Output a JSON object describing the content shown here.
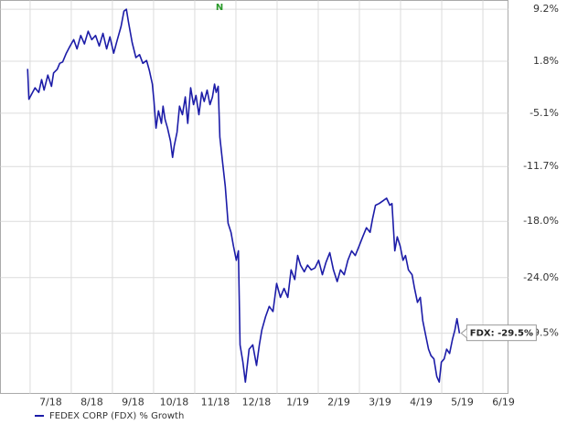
{
  "chart_data": {
    "type": "line",
    "yscale": "log-growth",
    "grid": true,
    "annotation": "N",
    "end_label": "FDX: -29.5%",
    "xlim": [
      -0.72,
      11.61
    ],
    "xticks": [
      {
        "value": 0,
        "label": "7/18"
      },
      {
        "value": 1,
        "label": "8/18"
      },
      {
        "value": 2,
        "label": "9/18"
      },
      {
        "value": 3,
        "label": "10/18"
      },
      {
        "value": 4,
        "label": "11/18"
      },
      {
        "value": 5,
        "label": "12/18"
      },
      {
        "value": 6,
        "label": "1/19"
      },
      {
        "value": 7,
        "label": "2/19"
      },
      {
        "value": 8,
        "label": "3/19"
      },
      {
        "value": 9,
        "label": "4/19"
      },
      {
        "value": 10,
        "label": "5/19"
      },
      {
        "value": 11,
        "label": "6/19"
      }
    ],
    "ylim": [
      -35,
      10.5
    ],
    "yticks": [
      {
        "value": 9.2,
        "label": "9.2%"
      },
      {
        "value": 1.8,
        "label": "1.8%"
      },
      {
        "value": -5.1,
        "label": "-5.1%"
      },
      {
        "value": -11.7,
        "label": "-11.7%"
      },
      {
        "value": -18.0,
        "label": "-18.0%"
      },
      {
        "value": -24.0,
        "label": "-24.0%"
      },
      {
        "value": -29.5,
        "label": "-29.5%"
      }
    ],
    "x": [
      -0.06,
      -0.03,
      0.06,
      0.12,
      0.21,
      0.28,
      0.34,
      0.43,
      0.52,
      0.57,
      0.66,
      0.72,
      0.79,
      0.88,
      0.97,
      1.06,
      1.14,
      1.23,
      1.32,
      1.41,
      1.5,
      1.59,
      1.68,
      1.77,
      1.86,
      1.94,
      2.03,
      2.12,
      2.21,
      2.28,
      2.34,
      2.39,
      2.48,
      2.57,
      2.66,
      2.74,
      2.83,
      2.9,
      2.97,
      3.01,
      3.06,
      3.12,
      3.19,
      3.23,
      3.28,
      3.34,
      3.41,
      3.46,
      3.5,
      3.57,
      3.63,
      3.7,
      3.77,
      3.83,
      3.9,
      3.97,
      4.03,
      4.1,
      4.17,
      4.23,
      4.3,
      4.37,
      4.43,
      4.48,
      4.52,
      4.57,
      4.61,
      4.68,
      4.74,
      4.81,
      4.88,
      4.94,
      5.01,
      5.06,
      5.1,
      5.17,
      5.23,
      5.32,
      5.41,
      5.5,
      5.57,
      5.63,
      5.72,
      5.81,
      5.9,
      5.99,
      6.08,
      6.17,
      6.26,
      6.34,
      6.43,
      6.5,
      6.57,
      6.66,
      6.74,
      6.83,
      6.92,
      7.01,
      7.1,
      7.19,
      7.28,
      7.37,
      7.46,
      7.54,
      7.63,
      7.72,
      7.81,
      7.9,
      7.99,
      8.08,
      8.17,
      8.26,
      8.32,
      8.39,
      8.48,
      8.57,
      8.66,
      8.74,
      8.79,
      8.86,
      8.92,
      8.99,
      9.06,
      9.12,
      9.19,
      9.28,
      9.34,
      9.41,
      9.48,
      9.54,
      9.61,
      9.68,
      9.74,
      9.81,
      9.88,
      9.94,
      9.99,
      10.06,
      10.12,
      10.19,
      10.26,
      10.32,
      10.37,
      10.43
    ],
    "series": [
      {
        "name": "FEDEX CORP (FDX) % Growth",
        "color": "#1c1ca8",
        "values": [
          0.75,
          -3.3,
          -2.4,
          -1.8,
          -2.4,
          -0.7,
          -2.1,
          -0.1,
          -1.6,
          0.2,
          0.7,
          1.5,
          1.7,
          2.9,
          3.9,
          4.8,
          3.5,
          5.4,
          4.2,
          6.0,
          4.8,
          5.4,
          3.9,
          5.7,
          3.5,
          5.2,
          2.9,
          4.8,
          6.7,
          8.9,
          9.2,
          7.3,
          4.4,
          2.3,
          2.7,
          1.5,
          1.9,
          0.5,
          -1.3,
          -3.6,
          -7.0,
          -4.8,
          -6.4,
          -4.2,
          -5.9,
          -7.0,
          -8.6,
          -10.6,
          -9.2,
          -7.5,
          -4.2,
          -5.3,
          -3.0,
          -6.4,
          -1.8,
          -4.0,
          -2.8,
          -5.3,
          -2.4,
          -3.6,
          -2.1,
          -4.0,
          -3.0,
          -1.3,
          -2.4,
          -1.6,
          -8.1,
          -11.4,
          -14.0,
          -18.2,
          -19.2,
          -20.7,
          -22.2,
          -21.2,
          -30.6,
          -32.2,
          -34.0,
          -31.0,
          -30.6,
          -32.5,
          -30.6,
          -29.2,
          -27.9,
          -26.9,
          -27.4,
          -24.6,
          -26.0,
          -25.1,
          -26.0,
          -23.2,
          -24.2,
          -21.7,
          -22.7,
          -23.4,
          -22.7,
          -23.2,
          -23.0,
          -22.2,
          -23.7,
          -22.4,
          -21.4,
          -23.2,
          -24.4,
          -23.2,
          -23.7,
          -22.2,
          -21.2,
          -21.7,
          -20.7,
          -19.7,
          -18.7,
          -19.2,
          -17.7,
          -16.2,
          -16.0,
          -15.7,
          -15.4,
          -16.2,
          -16.0,
          -21.2,
          -19.7,
          -20.7,
          -22.2,
          -21.7,
          -23.2,
          -23.7,
          -25.1,
          -26.5,
          -26.0,
          -28.3,
          -29.7,
          -31.0,
          -31.6,
          -31.9,
          -33.5,
          -34.0,
          -32.2,
          -31.9,
          -31.0,
          -31.4,
          -30.1,
          -29.2,
          -28.1,
          -29.5
        ]
      }
    ]
  }
}
